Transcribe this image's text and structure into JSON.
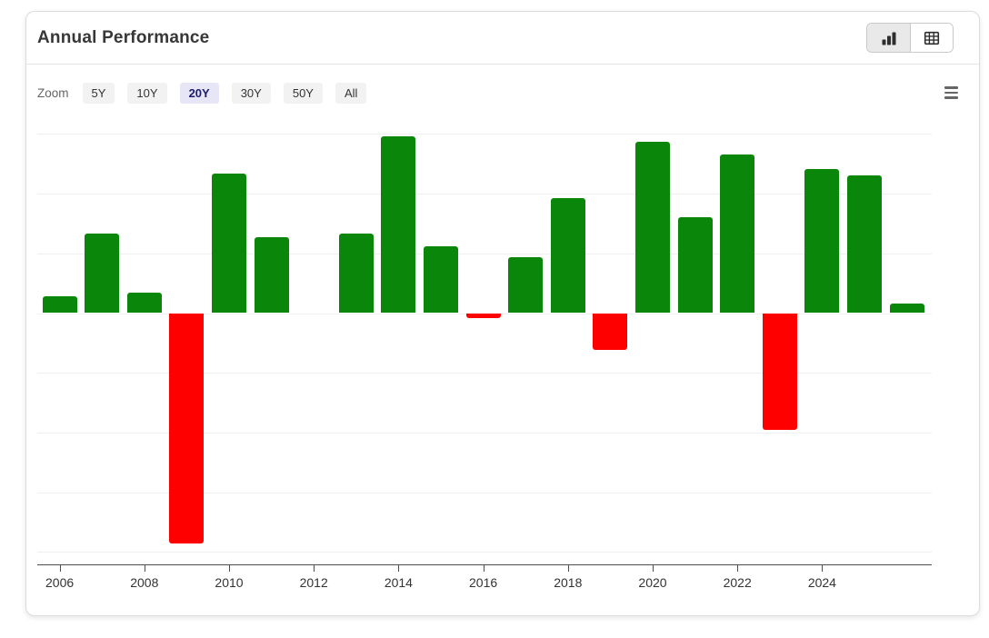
{
  "header": {
    "title": "Annual Performance",
    "view_toggle": {
      "options": [
        {
          "name": "chart-view",
          "icon": "bar-chart-icon",
          "selected": true
        },
        {
          "name": "table-view",
          "icon": "table-icon",
          "selected": false
        }
      ]
    }
  },
  "toolbar": {
    "zoom_label": "Zoom",
    "range_buttons": [
      {
        "label": "5Y",
        "selected": false
      },
      {
        "label": "10Y",
        "selected": false
      },
      {
        "label": "20Y",
        "selected": true
      },
      {
        "label": "30Y",
        "selected": false
      },
      {
        "label": "50Y",
        "selected": false
      },
      {
        "label": "All",
        "selected": false
      }
    ],
    "menu_icon": "hamburger-menu-icon"
  },
  "colors": {
    "positive_bar": "#0a870a",
    "negative_bar": "#fe0000",
    "selected_range_bg": "#e6e6f7",
    "selected_range_text": "#1c1c6b"
  },
  "chart_data": {
    "type": "bar",
    "title": "Annual Performance",
    "categories": [
      "2006",
      "2007",
      "2008",
      "2009",
      "2010",
      "2011",
      "2012",
      "2013",
      "2014",
      "2015",
      "2016",
      "2017",
      "2018",
      "2019",
      "2020",
      "2021",
      "2022",
      "2023",
      "2024",
      "2025",
      "2026"
    ],
    "values": [
      2.8,
      13.3,
      3.4,
      -38.6,
      23.4,
      12.7,
      0.0,
      13.3,
      29.6,
      11.2,
      -0.8,
      9.3,
      19.3,
      -6.1,
      28.7,
      16.1,
      26.6,
      -19.6,
      24.1,
      23.1,
      1.6
    ],
    "positive_color": "#0a870a",
    "negative_color": "#fe0000",
    "x_tick_labels": [
      "2006",
      "2008",
      "2010",
      "2012",
      "2014",
      "2016",
      "2018",
      "2020",
      "2022",
      "2024"
    ],
    "ylim": [
      -42,
      32
    ],
    "y_unit_per_gridline": 10,
    "gridline_values": [
      30,
      20,
      10,
      0,
      -10,
      -20,
      -30,
      -40
    ],
    "y_axis_labels_visible": false,
    "grid": "horizontal",
    "legend": "none"
  }
}
